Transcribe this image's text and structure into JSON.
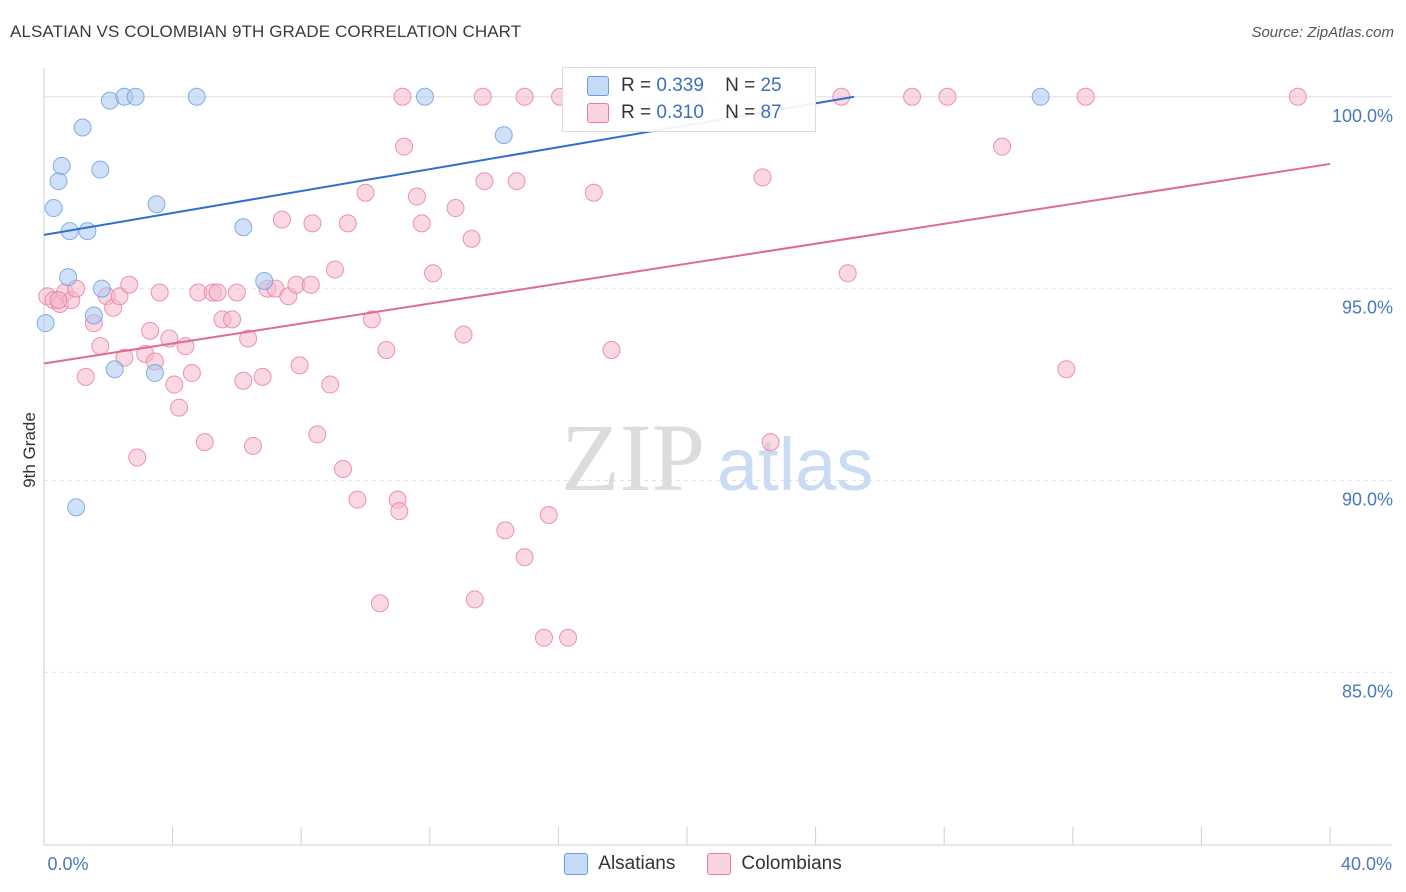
{
  "header": {
    "title": "ALSATIAN VS COLOMBIAN 9TH GRADE CORRELATION CHART",
    "source": "Source: ZipAtlas.com"
  },
  "watermark": {
    "zip": "ZIP",
    "atlas": "atlas"
  },
  "legend": {
    "rows": [
      {
        "r_label": "R =",
        "r_value": "0.339",
        "n_label": "N =",
        "n_value": "25",
        "color": "#a9c8f0"
      },
      {
        "r_label": "R =",
        "r_value": "0.310",
        "n_label": "N =",
        "n_value": "87",
        "color": "#f5b8cb"
      }
    ]
  },
  "bottom_legend": {
    "series1": "Alsatians",
    "series2": "Colombians"
  },
  "chart_data": {
    "type": "scatter",
    "title": "ALSATIAN VS COLOMBIAN 9TH GRADE CORRELATION CHART",
    "xlabel": "",
    "ylabel": "9th Grade",
    "xlim": [
      0,
      40
    ],
    "ylim": [
      80.5,
      100.75
    ],
    "x_tick_labels": [
      "0.0%",
      "40.0%"
    ],
    "y_ticks": [
      85,
      90,
      95,
      100
    ],
    "y_tick_labels": [
      "85.0%",
      "90.0%",
      "95.0%",
      "100.0%"
    ],
    "grid": true,
    "legend_position": "top-center",
    "series": [
      {
        "name": "Alsatians",
        "color": "#6a9ee0",
        "fill": "#a9c8f0",
        "r": 0.339,
        "n": 25,
        "trend": {
          "x": [
            0,
            25.2
          ],
          "y": [
            96.4,
            100.0
          ]
        },
        "points": [
          [
            0.05,
            94.1
          ],
          [
            0.3,
            97.1
          ],
          [
            0.45,
            97.8
          ],
          [
            0.55,
            98.2
          ],
          [
            0.8,
            96.5
          ],
          [
            0.75,
            95.3
          ],
          [
            1.0,
            89.3
          ],
          [
            1.2,
            99.2
          ],
          [
            1.35,
            96.5
          ],
          [
            1.55,
            94.3
          ],
          [
            1.75,
            98.1
          ],
          [
            1.8,
            95.0
          ],
          [
            2.05,
            99.9
          ],
          [
            2.5,
            100.0
          ],
          [
            2.85,
            100.0
          ],
          [
            2.2,
            92.9
          ],
          [
            3.45,
            92.8
          ],
          [
            3.5,
            97.2
          ],
          [
            4.75,
            100.0
          ],
          [
            6.2,
            96.6
          ],
          [
            6.85,
            95.2
          ],
          [
            11.85,
            100.0
          ],
          [
            14.3,
            99.0
          ],
          [
            20.3,
            100.0
          ],
          [
            31.0,
            100.0
          ]
        ]
      },
      {
        "name": "Colombians",
        "color": "#e87a9f",
        "fill": "#f5b8cb",
        "r": 0.31,
        "n": 87,
        "trend": {
          "x": [
            0,
            40
          ],
          "y": [
            93.05,
            98.25
          ]
        },
        "points": [
          [
            0.1,
            94.8
          ],
          [
            0.3,
            94.7
          ],
          [
            0.5,
            94.6
          ],
          [
            0.65,
            94.9
          ],
          [
            0.85,
            94.7
          ],
          [
            1.0,
            95.0
          ],
          [
            1.3,
            92.7
          ],
          [
            1.55,
            94.1
          ],
          [
            1.75,
            93.5
          ],
          [
            1.95,
            94.8
          ],
          [
            2.15,
            94.5
          ],
          [
            2.35,
            94.8
          ],
          [
            2.5,
            93.2
          ],
          [
            2.65,
            95.1
          ],
          [
            2.9,
            90.6
          ],
          [
            3.15,
            93.3
          ],
          [
            3.3,
            93.9
          ],
          [
            3.45,
            93.1
          ],
          [
            3.6,
            94.9
          ],
          [
            3.9,
            93.7
          ],
          [
            4.05,
            92.5
          ],
          [
            4.2,
            91.9
          ],
          [
            4.4,
            93.5
          ],
          [
            4.6,
            92.8
          ],
          [
            4.8,
            94.9
          ],
          [
            5.0,
            91.0
          ],
          [
            5.25,
            94.9
          ],
          [
            5.4,
            94.9
          ],
          [
            5.55,
            94.2
          ],
          [
            5.85,
            94.2
          ],
          [
            6.0,
            94.9
          ],
          [
            6.2,
            92.6
          ],
          [
            6.35,
            93.7
          ],
          [
            6.5,
            90.9
          ],
          [
            6.8,
            92.7
          ],
          [
            6.95,
            95.0
          ],
          [
            7.2,
            95.0
          ],
          [
            7.4,
            96.8
          ],
          [
            7.6,
            94.8
          ],
          [
            7.85,
            95.1
          ],
          [
            7.95,
            93.0
          ],
          [
            8.3,
            95.1
          ],
          [
            8.35,
            96.7
          ],
          [
            8.5,
            91.2
          ],
          [
            8.9,
            92.5
          ],
          [
            9.05,
            95.5
          ],
          [
            9.3,
            90.3
          ],
          [
            9.45,
            96.7
          ],
          [
            9.75,
            89.5
          ],
          [
            10.0,
            97.5
          ],
          [
            10.2,
            94.2
          ],
          [
            10.45,
            86.8
          ],
          [
            10.65,
            93.4
          ],
          [
            11.0,
            89.5
          ],
          [
            11.05,
            89.2
          ],
          [
            11.15,
            100.0
          ],
          [
            11.2,
            98.7
          ],
          [
            11.6,
            97.4
          ],
          [
            11.75,
            96.7
          ],
          [
            12.1,
            95.4
          ],
          [
            12.8,
            97.1
          ],
          [
            13.05,
            93.8
          ],
          [
            13.3,
            96.3
          ],
          [
            13.4,
            86.9
          ],
          [
            13.65,
            100.0
          ],
          [
            13.7,
            97.8
          ],
          [
            14.35,
            88.7
          ],
          [
            14.7,
            97.8
          ],
          [
            14.95,
            100.0
          ],
          [
            14.95,
            88.0
          ],
          [
            15.55,
            85.9
          ],
          [
            15.7,
            89.1
          ],
          [
            16.05,
            100.0
          ],
          [
            16.3,
            85.9
          ],
          [
            17.1,
            97.5
          ],
          [
            17.65,
            93.4
          ],
          [
            22.35,
            97.9
          ],
          [
            22.6,
            91.0
          ],
          [
            24.8,
            100.0
          ],
          [
            25.0,
            95.4
          ],
          [
            27.0,
            100.0
          ],
          [
            28.1,
            100.0
          ],
          [
            29.8,
            98.7
          ],
          [
            31.8,
            92.9
          ],
          [
            32.4,
            100.0
          ],
          [
            39.0,
            100.0
          ],
          [
            0.45,
            94.7
          ]
        ]
      }
    ]
  }
}
